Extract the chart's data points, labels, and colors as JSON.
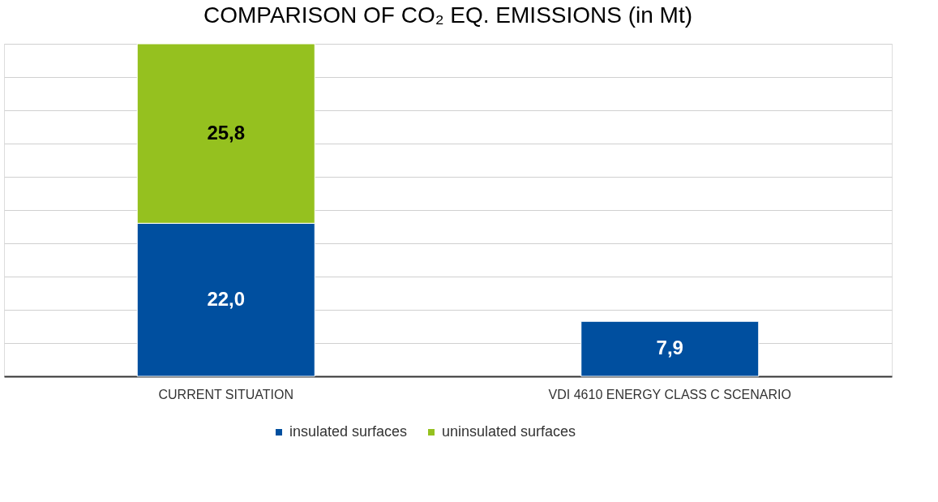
{
  "chart_data": {
    "type": "bar",
    "title": "COMPARISON OF CO₂ EQ. EMISSIONS (in Mt)",
    "categories": [
      "CURRENT SITUATION",
      "VDI 4610 ENERGY CLASS C SCENARIO"
    ],
    "stacked": true,
    "series": [
      {
        "name": "insulated surfaces",
        "color": "#004f9f",
        "values": [
          22.0,
          7.9
        ],
        "value_labels": [
          "22,0",
          "7,9"
        ]
      },
      {
        "name": "uninsulated surfaces",
        "color": "#95c11f",
        "values": [
          25.8,
          null
        ],
        "value_labels": [
          "25,8",
          null
        ]
      }
    ],
    "ylim": [
      0,
      47.8
    ],
    "yticks": [
      {
        "value": 0,
        "label": null
      },
      {
        "value": 4.78,
        "label": null
      },
      {
        "value": 9.56,
        "label": null
      },
      {
        "value": 14.34,
        "label": null
      },
      {
        "value": 19.12,
        "label": null
      },
      {
        "value": 23.9,
        "label": null
      },
      {
        "value": 28.68,
        "label": null
      },
      {
        "value": 33.46,
        "label": null
      },
      {
        "value": 38.24,
        "label": null
      },
      {
        "value": 43.02,
        "label": null
      },
      {
        "value": 47.8,
        "label": null
      }
    ],
    "grid": "y",
    "tick_labels": "x",
    "legend": "bottom"
  }
}
